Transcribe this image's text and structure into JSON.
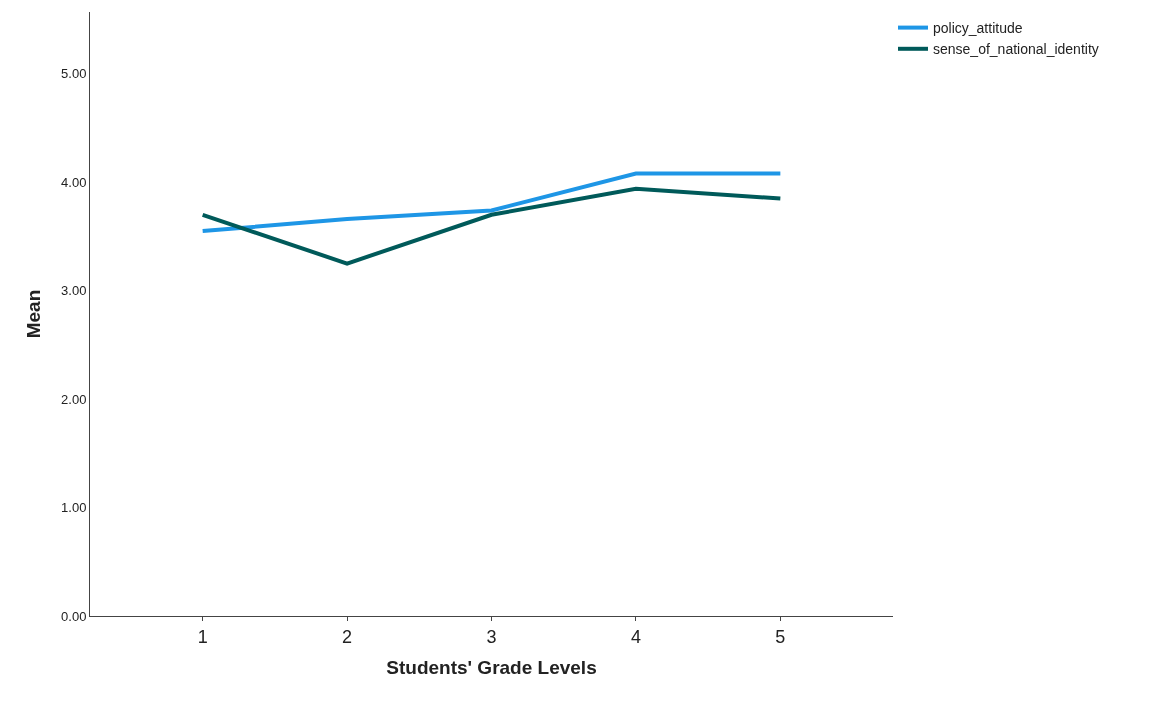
{
  "chart_data": {
    "type": "line",
    "xlabel": "Students' Grade Levels",
    "ylabel": "Mean",
    "x": [
      1,
      2,
      3,
      4,
      5
    ],
    "xlim": [
      0.22,
      5.78
    ],
    "xticks": [
      1,
      2,
      3,
      4,
      5
    ],
    "ylim": [
      0,
      5.57
    ],
    "yticks": [
      {
        "value": 0,
        "label": "0.00"
      },
      {
        "value": 1,
        "label": "1.00"
      },
      {
        "value": 2,
        "label": "2.00"
      },
      {
        "value": 3,
        "label": "3.00"
      },
      {
        "value": 4,
        "label": "4.00"
      },
      {
        "value": 5,
        "label": "5.00"
      }
    ],
    "series": [
      {
        "name": "policy_attitude",
        "color": "#1e96e6",
        "values": [
          3.55,
          3.66,
          3.74,
          4.08,
          4.08
        ]
      },
      {
        "name": "sense_of_national_identity",
        "color": "#005a5a",
        "values": [
          3.7,
          3.25,
          3.7,
          3.94,
          3.85
        ]
      }
    ],
    "grid": false,
    "legend": "top right",
    "marker": "none",
    "line_style": "solid"
  }
}
